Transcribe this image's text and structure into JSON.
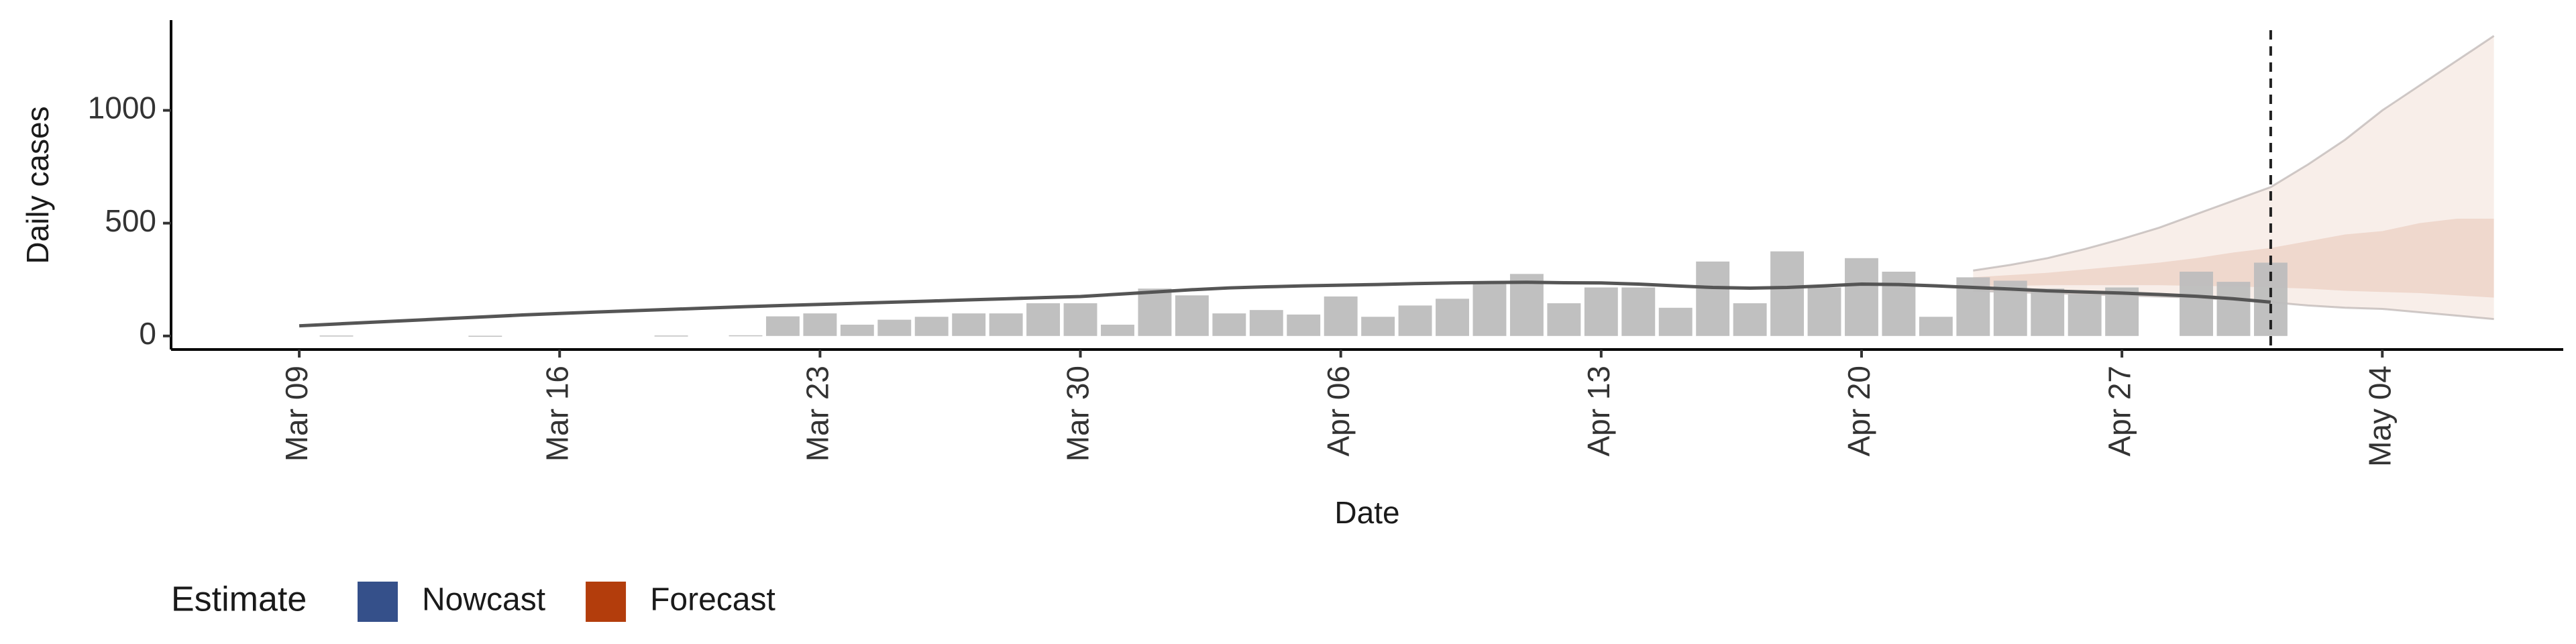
{
  "chart_data": {
    "type": "bar",
    "xlabel": "Date",
    "ylabel": "Daily cases",
    "categories": [
      null,
      null,
      null,
      "Mar 09",
      null,
      null,
      null,
      null,
      null,
      null,
      "Mar 16",
      null,
      null,
      null,
      null,
      null,
      null,
      "Mar 23",
      null,
      null,
      null,
      null,
      null,
      null,
      "Mar 30",
      null,
      null,
      null,
      null,
      null,
      null,
      "Apr 06",
      null,
      null,
      null,
      null,
      null,
      null,
      "Apr 13",
      null,
      null,
      null,
      null,
      null,
      null,
      "Apr 20",
      null,
      null,
      null,
      null,
      null,
      null,
      "Apr 27",
      null,
      null,
      null,
      null,
      null,
      null,
      "May 04",
      null,
      null,
      null,
      null
    ],
    "values": [
      null,
      null,
      null,
      null,
      2,
      null,
      null,
      null,
      1,
      null,
      null,
      null,
      null,
      2,
      null,
      3,
      87,
      100,
      50,
      72,
      85,
      100,
      100,
      145,
      145,
      50,
      210,
      180,
      100,
      115,
      95,
      175,
      85,
      135,
      165,
      230,
      275,
      145,
      215,
      215,
      125,
      330,
      145,
      375,
      215,
      345,
      285,
      85,
      260,
      245,
      210,
      185,
      215,
      null,
      285,
      240,
      325,
      null,
      null,
      null,
      null,
      null,
      null,
      null
    ],
    "color": "#bdbdbd",
    "median": [
      null,
      null,
      null,
      45,
      53,
      61,
      69,
      77,
      85,
      93,
      100,
      106,
      112,
      118,
      124,
      130,
      135,
      140,
      145,
      150,
      155,
      160,
      165,
      170,
      175,
      185,
      195,
      205,
      213,
      218,
      222,
      225,
      228,
      232,
      235,
      237,
      238,
      236,
      235,
      230,
      222,
      215,
      212,
      215,
      222,
      230,
      228,
      222,
      215,
      208,
      200,
      195,
      190,
      184,
      176,
      165,
      150,
      null,
      null,
      null,
      null,
      null,
      null,
      null
    ],
    "median_color": "#555555",
    "forecast_color": "#b33d0c",
    "upper90": [
      null,
      null,
      null,
      null,
      null,
      null,
      null,
      null,
      null,
      null,
      null,
      null,
      null,
      null,
      null,
      null,
      null,
      null,
      null,
      null,
      null,
      null,
      null,
      null,
      null,
      null,
      null,
      null,
      null,
      null,
      null,
      null,
      null,
      null,
      null,
      null,
      null,
      null,
      null,
      null,
      null,
      null,
      null,
      null,
      null,
      null,
      null,
      null,
      290,
      315,
      345,
      385,
      430,
      480,
      540,
      600,
      660,
      760,
      870,
      1000,
      1110,
      1220,
      1330,
      null
    ],
    "lower90": [
      null,
      null,
      null,
      null,
      null,
      null,
      null,
      null,
      null,
      null,
      null,
      null,
      null,
      null,
      null,
      null,
      null,
      null,
      null,
      null,
      null,
      null,
      null,
      null,
      null,
      null,
      null,
      null,
      null,
      null,
      null,
      null,
      null,
      null,
      null,
      null,
      null,
      null,
      null,
      null,
      null,
      null,
      null,
      null,
      null,
      null,
      null,
      null,
      200,
      195,
      190,
      185,
      180,
      175,
      170,
      160,
      150,
      135,
      125,
      120,
      105,
      90,
      75,
      null
    ],
    "upper50": [
      null,
      null,
      null,
      null,
      null,
      null,
      null,
      null,
      null,
      null,
      null,
      null,
      null,
      null,
      null,
      null,
      null,
      null,
      null,
      null,
      null,
      null,
      null,
      null,
      null,
      null,
      null,
      null,
      null,
      null,
      null,
      null,
      null,
      null,
      null,
      null,
      null,
      null,
      null,
      null,
      null,
      null,
      null,
      null,
      null,
      null,
      null,
      null,
      260,
      270,
      280,
      295,
      310,
      325,
      345,
      370,
      390,
      420,
      450,
      465,
      500,
      520,
      520,
      null
    ],
    "lower50": [
      null,
      null,
      null,
      null,
      null,
      null,
      null,
      null,
      null,
      null,
      null,
      null,
      null,
      null,
      null,
      null,
      null,
      null,
      null,
      null,
      null,
      null,
      null,
      null,
      null,
      null,
      null,
      null,
      null,
      null,
      null,
      null,
      null,
      null,
      null,
      null,
      null,
      null,
      null,
      null,
      null,
      null,
      null,
      null,
      null,
      null,
      null,
      null,
      220,
      222,
      225,
      225,
      225,
      225,
      222,
      220,
      215,
      210,
      200,
      195,
      190,
      180,
      170,
      null
    ],
    "ylim": [
      -60,
      1400
    ],
    "yticks": [
      0,
      500,
      1000
    ],
    "grid": false,
    "legend": {
      "title": "Estimate",
      "position": "bottom-left",
      "items": [
        {
          "name": "Nowcast",
          "color": "#35508a"
        },
        {
          "name": "Forecast",
          "color": "#b33d0c"
        }
      ]
    }
  }
}
